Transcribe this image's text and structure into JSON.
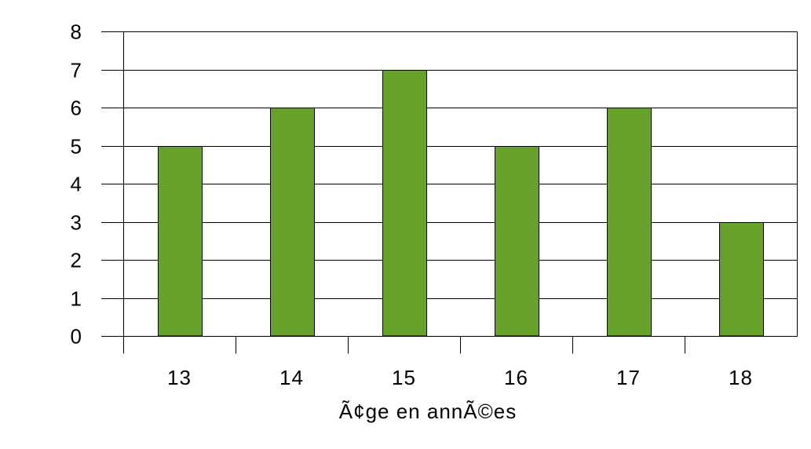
{
  "chart_data": {
    "type": "bar",
    "title": "",
    "xlabel": "Ã¢ge en annÃ©es",
    "ylabel": "",
    "categories": [
      "13",
      "14",
      "15",
      "16",
      "17",
      "18"
    ],
    "values": [
      5,
      6,
      7,
      5,
      6,
      3
    ],
    "ylim": [
      0,
      8
    ],
    "yticks": [
      0,
      1,
      2,
      3,
      4,
      5,
      6,
      7,
      8
    ],
    "grid": true,
    "legend": "none",
    "bar_color": "#66a12a",
    "bar_outline_color": "#000000"
  }
}
